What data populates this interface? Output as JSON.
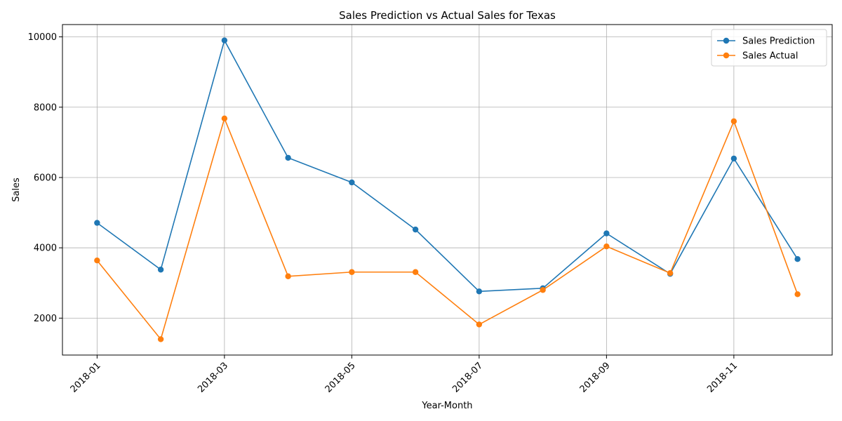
{
  "chart_data": {
    "type": "line",
    "title": "Sales Prediction vs Actual Sales for Texas",
    "xlabel": "Year-Month",
    "ylabel": "Sales",
    "x": [
      "2018-01",
      "2018-02",
      "2018-03",
      "2018-04",
      "2018-05",
      "2018-06",
      "2018-07",
      "2018-08",
      "2018-09",
      "2018-10",
      "2018-11",
      "2018-12"
    ],
    "x_tick_labels": [
      "2018-01",
      "2018-03",
      "2018-05",
      "2018-07",
      "2018-09",
      "2018-11"
    ],
    "y_ticks": [
      2000,
      4000,
      6000,
      8000,
      10000
    ],
    "ylim": [
      950,
      10350
    ],
    "grid": true,
    "legend_position": "top-right",
    "series": [
      {
        "name": "Sales Prediction",
        "color": "#1f77b4",
        "values": [
          4710,
          3380,
          9900,
          6560,
          5860,
          4520,
          2760,
          2850,
          4410,
          3260,
          6540,
          3680
        ]
      },
      {
        "name": "Sales Actual",
        "color": "#ff7f0e",
        "values": [
          3640,
          1400,
          7680,
          3190,
          3310,
          3310,
          1820,
          2800,
          4040,
          3280,
          7600,
          2680
        ]
      }
    ]
  }
}
